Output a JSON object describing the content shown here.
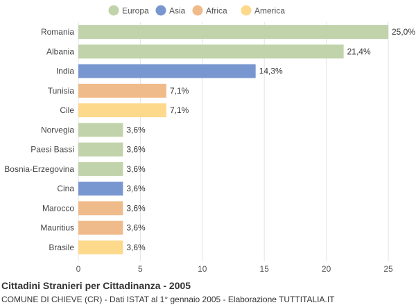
{
  "chart_data": {
    "type": "bar",
    "orientation": "horizontal",
    "categories": [
      "Romania",
      "Albania",
      "India",
      "Tunisia",
      "Cile",
      "Norvegia",
      "Paesi Bassi",
      "Bosnia-Erzegovina",
      "Cina",
      "Marocco",
      "Mauritius",
      "Brasile"
    ],
    "values": [
      25.0,
      21.4,
      14.3,
      7.1,
      7.1,
      3.6,
      3.6,
      3.6,
      3.6,
      3.6,
      3.6,
      3.6
    ],
    "value_labels": [
      "25,0%",
      "21,4%",
      "14,3%",
      "7,1%",
      "7,1%",
      "3,6%",
      "3,6%",
      "3,6%",
      "3,6%",
      "3,6%",
      "3,6%",
      "3,6%"
    ],
    "groups": [
      "Europa",
      "Europa",
      "Asia",
      "Africa",
      "America",
      "Europa",
      "Europa",
      "Europa",
      "Asia",
      "Africa",
      "Africa",
      "America"
    ],
    "legend": [
      {
        "name": "Europa",
        "color": "#c1d3aa"
      },
      {
        "name": "Asia",
        "color": "#7896cf"
      },
      {
        "name": "Africa",
        "color": "#f0bb8a"
      },
      {
        "name": "America",
        "color": "#fdd98c"
      }
    ],
    "legend_position": "top",
    "xlim": [
      0,
      25
    ],
    "xticks": [
      0,
      5,
      10,
      15,
      20,
      25
    ],
    "grid": true,
    "title": "Cittadini Stranieri per Cittadinanza - 2005",
    "subtitle": "COMUNE DI CHIEVE (CR) - Dati ISTAT al 1° gennaio 2005 - Elaborazione TUTTITALIA.IT"
  }
}
